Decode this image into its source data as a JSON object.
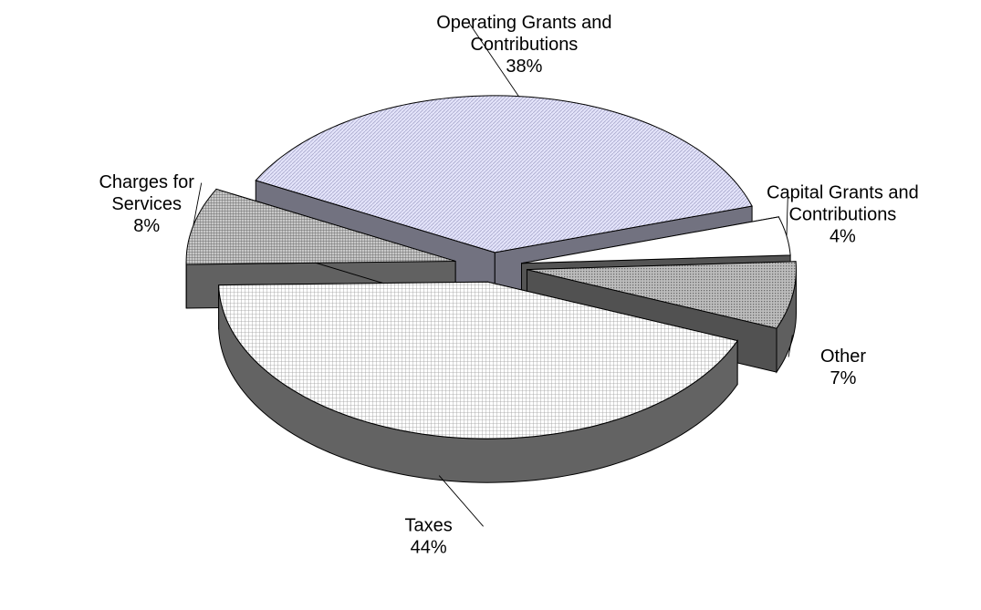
{
  "chart_data": {
    "type": "pie",
    "title": "",
    "legend": "none",
    "slices": [
      {
        "name": "Taxes",
        "label_lines": [
          "Taxes"
        ],
        "percent_label": "44%",
        "value": 44,
        "color": "#ffffff",
        "pattern": "grid"
      },
      {
        "name": "Charges for Services",
        "label_lines": [
          "Charges for",
          "Services"
        ],
        "percent_label": "8%",
        "value": 8,
        "color": "#b8b8b8",
        "pattern": "dense"
      },
      {
        "name": "Operating Grants and Contributions",
        "label_lines": [
          "Operating Grants and",
          "Contributions"
        ],
        "percent_label": "38%",
        "value": 38,
        "color": "#d8d8f4",
        "pattern": "diagonal"
      },
      {
        "name": "Capital Grants and Contributions",
        "label_lines": [
          "Capital Grants and",
          "Contributions"
        ],
        "percent_label": "4%",
        "value": 4,
        "color": "#ffffff",
        "pattern": "none"
      },
      {
        "name": "Other",
        "label_lines": [
          "Other"
        ],
        "percent_label": "7%",
        "value": 7,
        "color": "#9a9a9a",
        "pattern": "dots"
      }
    ]
  }
}
